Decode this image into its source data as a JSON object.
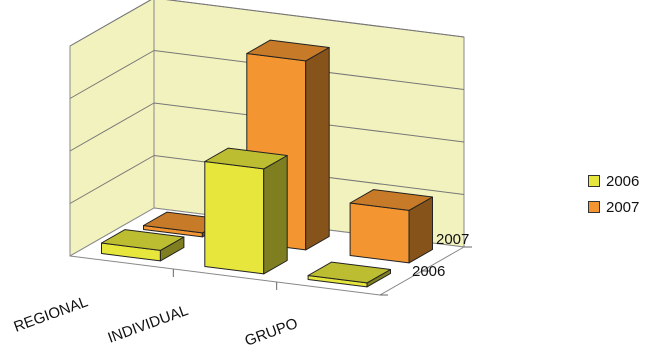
{
  "chart_data": {
    "type": "bar",
    "categories": [
      "REGIONAL",
      "INDIVIDUAL",
      "GRUPO"
    ],
    "depth_labels": [
      "2007",
      "2006"
    ],
    "series": [
      {
        "name": "2006",
        "values": [
          1,
          10,
          0
        ],
        "color": "#E6E63C"
      },
      {
        "name": "2007",
        "values": [
          0,
          18,
          5
        ],
        "color": "#F39631"
      }
    ],
    "ylim": [
      0,
      20
    ],
    "grid": true,
    "legend": "right",
    "colors": {
      "wall": "#F2F2BE",
      "floor": "#ffffff"
    }
  }
}
